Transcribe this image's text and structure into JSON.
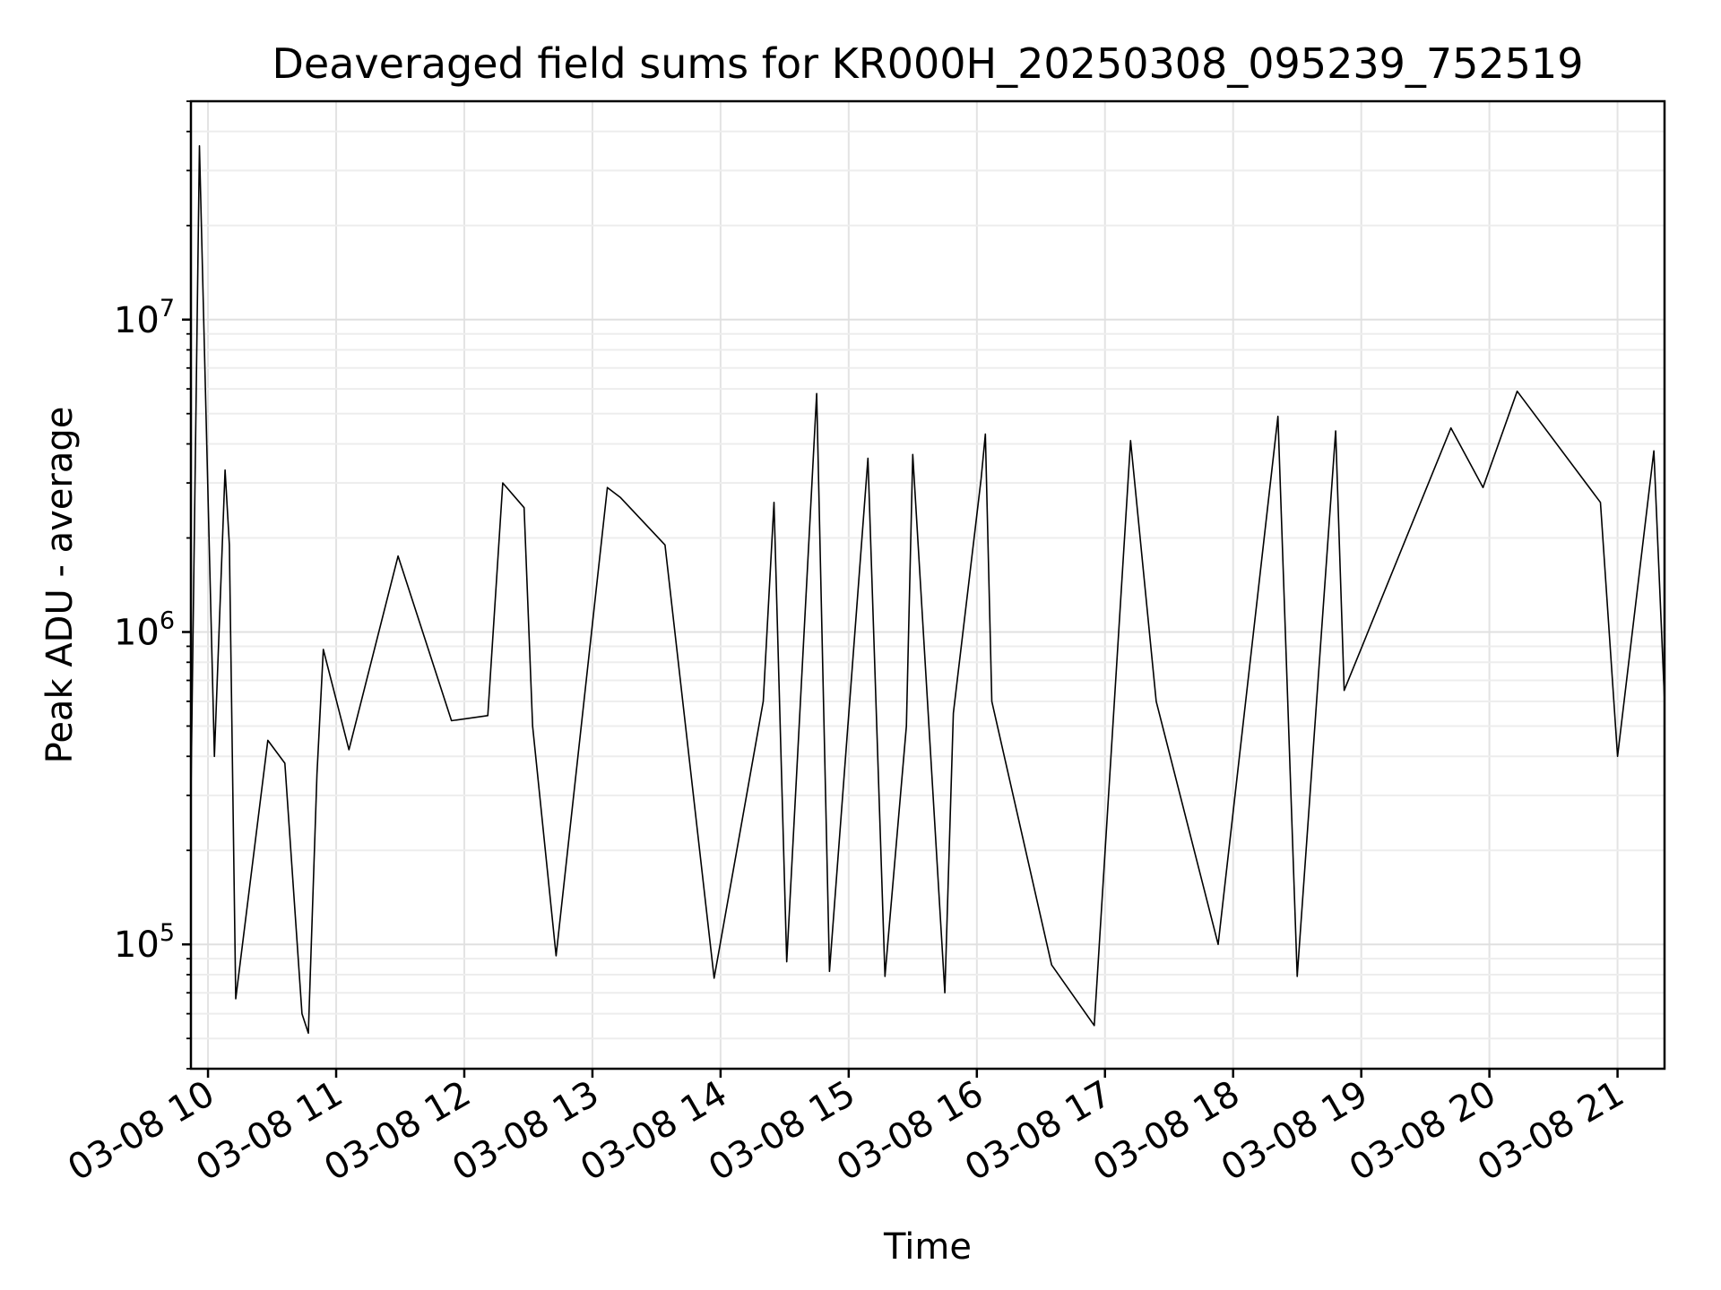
{
  "chart_data": {
    "type": "line",
    "title": "Deaveraged field sums for KR000H_20250308_095239_752519",
    "xlabel": "Time",
    "ylabel": "Peak ADU - average",
    "x_axis": {
      "kind": "datetime",
      "range": [
        "2025-03-08 09:52",
        "2025-03-08 21:22"
      ],
      "ticks": [
        {
          "value": "2025-03-08 10:00",
          "label": "03-08 10"
        },
        {
          "value": "2025-03-08 11:00",
          "label": "03-08 11"
        },
        {
          "value": "2025-03-08 12:00",
          "label": "03-08 12"
        },
        {
          "value": "2025-03-08 13:00",
          "label": "03-08 13"
        },
        {
          "value": "2025-03-08 14:00",
          "label": "03-08 14"
        },
        {
          "value": "2025-03-08 15:00",
          "label": "03-08 15"
        },
        {
          "value": "2025-03-08 16:00",
          "label": "03-08 16"
        },
        {
          "value": "2025-03-08 17:00",
          "label": "03-08 17"
        },
        {
          "value": "2025-03-08 18:00",
          "label": "03-08 18"
        },
        {
          "value": "2025-03-08 19:00",
          "label": "03-08 19"
        },
        {
          "value": "2025-03-08 20:00",
          "label": "03-08 20"
        },
        {
          "value": "2025-03-08 21:00",
          "label": "03-08 21"
        }
      ]
    },
    "y_axis": {
      "scale": "log",
      "range": [
        40000,
        50000000
      ],
      "ticks": [
        {
          "value": 100000,
          "base": "10",
          "exp": "5"
        },
        {
          "value": 1000000,
          "base": "10",
          "exp": "6"
        },
        {
          "value": 10000000,
          "base": "10",
          "exp": "7"
        }
      ]
    },
    "grid": true,
    "line_color": "#000000",
    "series": [
      {
        "x": [
          "2025-03-08 09:52",
          "2025-03-08 09:56",
          "2025-03-08 10:03",
          "2025-03-08 10:08",
          "2025-03-08 10:10",
          "2025-03-08 10:13",
          "2025-03-08 10:28",
          "2025-03-08 10:36",
          "2025-03-08 10:44",
          "2025-03-08 10:47",
          "2025-03-08 10:51",
          "2025-03-08 10:54",
          "2025-03-08 11:06",
          "2025-03-08 11:29",
          "2025-03-08 11:54",
          "2025-03-08 12:11",
          "2025-03-08 12:18",
          "2025-03-08 12:28",
          "2025-03-08 12:32",
          "2025-03-08 12:43",
          "2025-03-08 13:07",
          "2025-03-08 13:13",
          "2025-03-08 13:34",
          "2025-03-08 13:57",
          "2025-03-08 14:20",
          "2025-03-08 14:25",
          "2025-03-08 14:31",
          "2025-03-08 14:45",
          "2025-03-08 14:51",
          "2025-03-08 15:09",
          "2025-03-08 15:17",
          "2025-03-08 15:27",
          "2025-03-08 15:30",
          "2025-03-08 15:45",
          "2025-03-08 15:49",
          "2025-03-08 16:02",
          "2025-03-08 16:04",
          "2025-03-08 16:07",
          "2025-03-08 16:35",
          "2025-03-08 16:55",
          "2025-03-08 17:12",
          "2025-03-08 17:24",
          "2025-03-08 17:53",
          "2025-03-08 18:21",
          "2025-03-08 18:30",
          "2025-03-08 18:48",
          "2025-03-08 18:52",
          "2025-03-08 19:42",
          "2025-03-08 19:57",
          "2025-03-08 20:13",
          "2025-03-08 20:52",
          "2025-03-08 21:00",
          "2025-03-08 21:17",
          "2025-03-08 21:22"
        ],
        "y": [
          300000,
          36000000,
          400000,
          3300000,
          1900000,
          67000,
          450000,
          380000,
          60000,
          52000,
          350000,
          880000,
          420000,
          1750000,
          520000,
          540000,
          3000000,
          2500000,
          500000,
          92000,
          2900000,
          2700000,
          1900000,
          78000,
          600000,
          2600000,
          88000,
          5800000,
          82000,
          3600000,
          79000,
          500000,
          3700000,
          70000,
          550000,
          3100000,
          4300000,
          600000,
          86000,
          55000,
          4100000,
          600000,
          100000,
          4900000,
          79000,
          4400000,
          650000,
          4500000,
          2900000,
          5900000,
          2600000,
          400000,
          3800000,
          600000
        ]
      }
    ]
  }
}
